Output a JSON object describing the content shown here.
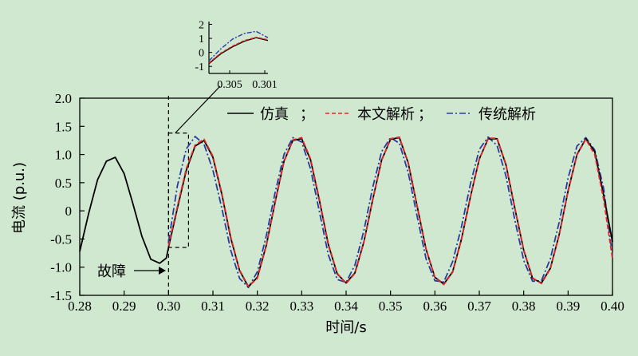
{
  "chart_data": {
    "type": "line",
    "title": "",
    "xlabel": "时间/s",
    "ylabel": "电流 (p.u.)",
    "xlim": [
      0.28,
      0.4
    ],
    "ylim": [
      -1.5,
      2.0
    ],
    "x_ticks": [
      "0.28",
      "0.29",
      "0.30",
      "0.31",
      "0.32",
      "0.33",
      "0.34",
      "0.35",
      "0.36",
      "0.37",
      "0.38",
      "0.39",
      "0.40"
    ],
    "y_ticks": [
      "2.0",
      "1.5",
      "1.0",
      "0.5",
      "0",
      "-0.5",
      "-1.0",
      "-1.5"
    ],
    "grid": false,
    "legend_position": "top-right",
    "annotation": "故障",
    "fault_time": 0.3,
    "series": [
      {
        "name": "仿真",
        "color": "#000000",
        "style": "solid",
        "x": [
          0.28,
          0.282,
          0.284,
          0.286,
          0.288,
          0.29,
          0.292,
          0.294,
          0.296,
          0.298,
          0.2995,
          0.3,
          0.302,
          0.304,
          0.306,
          0.308,
          0.31,
          0.312,
          0.314,
          0.316,
          0.318,
          0.32,
          0.322,
          0.324,
          0.326,
          0.328,
          0.33,
          0.332,
          0.334,
          0.336,
          0.338,
          0.34,
          0.342,
          0.344,
          0.346,
          0.348,
          0.35,
          0.352,
          0.354,
          0.356,
          0.358,
          0.36,
          0.362,
          0.364,
          0.366,
          0.368,
          0.37,
          0.372,
          0.374,
          0.376,
          0.378,
          0.38,
          0.382,
          0.384,
          0.386,
          0.388,
          0.39,
          0.392,
          0.394,
          0.396,
          0.398,
          0.4
        ],
        "y": [
          -0.72,
          -0.05,
          0.55,
          0.88,
          0.95,
          0.66,
          0.12,
          -0.45,
          -0.86,
          -0.93,
          -0.84,
          -0.65,
          0.05,
          0.72,
          1.15,
          1.25,
          0.95,
          0.3,
          -0.48,
          -1.06,
          -1.35,
          -1.18,
          -0.62,
          0.15,
          0.88,
          1.25,
          1.28,
          0.9,
          0.18,
          -0.6,
          -1.12,
          -1.28,
          -1.1,
          -0.55,
          0.2,
          0.9,
          1.27,
          1.3,
          0.85,
          0.08,
          -0.68,
          -1.18,
          -1.3,
          -1.08,
          -0.5,
          0.25,
          0.92,
          1.28,
          1.28,
          0.82,
          0.05,
          -0.7,
          -1.2,
          -1.28,
          -1.02,
          -0.42,
          0.35,
          1.0,
          1.28,
          1.05,
          0.28,
          -0.55
        ]
      },
      {
        "name": "本文解析",
        "color": "#e8262a",
        "style": "dashed",
        "x": [
          0.3,
          0.302,
          0.304,
          0.306,
          0.308,
          0.31,
          0.312,
          0.314,
          0.316,
          0.318,
          0.32,
          0.322,
          0.324,
          0.326,
          0.328,
          0.33,
          0.332,
          0.334,
          0.336,
          0.338,
          0.34,
          0.342,
          0.344,
          0.346,
          0.348,
          0.35,
          0.352,
          0.354,
          0.356,
          0.358,
          0.36,
          0.362,
          0.364,
          0.366,
          0.368,
          0.37,
          0.372,
          0.374,
          0.376,
          0.378,
          0.38,
          0.382,
          0.384,
          0.386,
          0.388,
          0.39,
          0.392,
          0.394,
          0.396,
          0.398,
          0.4
        ],
        "y": [
          -0.62,
          0.08,
          0.75,
          1.17,
          1.27,
          0.97,
          0.32,
          -0.46,
          -1.05,
          -1.34,
          -1.2,
          -0.63,
          0.14,
          0.87,
          1.26,
          1.3,
          0.92,
          0.2,
          -0.58,
          -1.11,
          -1.29,
          -1.11,
          -0.56,
          0.19,
          0.89,
          1.28,
          1.31,
          0.86,
          0.09,
          -0.67,
          -1.18,
          -1.31,
          -1.09,
          -0.51,
          0.24,
          0.91,
          1.29,
          1.29,
          0.83,
          0.06,
          -0.69,
          -1.19,
          -1.29,
          -1.03,
          -0.43,
          0.34,
          0.99,
          1.27,
          1.0,
          0.2,
          -0.85
        ]
      },
      {
        "name": "传统解析",
        "color": "#2b3aa3",
        "style": "dashdot",
        "x": [
          0.3,
          0.302,
          0.304,
          0.306,
          0.308,
          0.31,
          0.312,
          0.314,
          0.316,
          0.318,
          0.32,
          0.322,
          0.324,
          0.326,
          0.328,
          0.33,
          0.332,
          0.334,
          0.336,
          0.338,
          0.34,
          0.342,
          0.344,
          0.346,
          0.348,
          0.35,
          0.352,
          0.354,
          0.356,
          0.358,
          0.36,
          0.362,
          0.364,
          0.366,
          0.368,
          0.37,
          0.372,
          0.374,
          0.376,
          0.378,
          0.38,
          0.382,
          0.384,
          0.386,
          0.388,
          0.39,
          0.392,
          0.394,
          0.396,
          0.398,
          0.4
        ],
        "y": [
          -0.55,
          0.45,
          1.1,
          1.32,
          1.18,
          0.72,
          0.05,
          -0.7,
          -1.2,
          -1.36,
          -1.08,
          -0.45,
          0.32,
          1.0,
          1.3,
          1.22,
          0.74,
          -0.02,
          -0.78,
          -1.22,
          -1.27,
          -0.96,
          -0.35,
          0.42,
          1.05,
          1.3,
          1.2,
          0.68,
          -0.1,
          -0.85,
          -1.24,
          -1.26,
          -0.9,
          -0.28,
          0.48,
          1.09,
          1.31,
          1.16,
          0.62,
          -0.16,
          -0.88,
          -1.25,
          -1.24,
          -0.85,
          -0.2,
          0.58,
          1.15,
          1.3,
          1.08,
          0.4,
          -0.8
        ]
      }
    ],
    "inset": {
      "xlim": [
        0.3,
        0.301
      ],
      "ylim": [
        -1.5,
        2.2
      ],
      "x_ticks": [
        "0.305",
        "0.301"
      ],
      "y_ticks": [
        "2",
        "1",
        "0",
        "-1"
      ],
      "series": [
        {
          "name": "仿真",
          "x": [
            0.3,
            0.3002,
            0.3004,
            0.3006,
            0.3008,
            0.301
          ],
          "y": [
            -0.8,
            -0.1,
            0.4,
            0.8,
            1.05,
            0.85
          ]
        },
        {
          "name": "本文解析",
          "x": [
            0.3,
            0.3002,
            0.3004,
            0.3006,
            0.3008,
            0.301
          ],
          "y": [
            -0.75,
            -0.05,
            0.45,
            0.85,
            1.08,
            0.9
          ]
        },
        {
          "name": "传统解析",
          "x": [
            0.3,
            0.3002,
            0.3004,
            0.3006,
            0.3008,
            0.301
          ],
          "y": [
            -0.6,
            0.25,
            0.95,
            1.35,
            1.5,
            1.05
          ]
        }
      ]
    }
  }
}
